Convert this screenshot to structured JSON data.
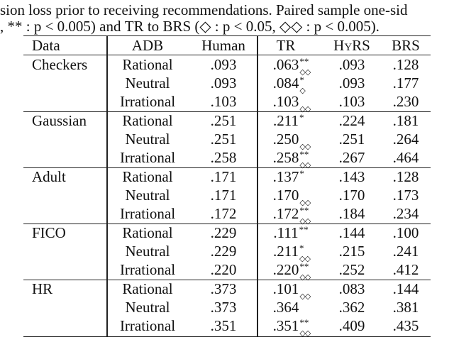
{
  "caption": {
    "line1": "sion loss prior to receiving recommendations. Paired sample one-sid",
    "line2_pre": ", ** : p < 0.005) and ",
    "line2_tr": "TR",
    "line2_mid": " to ",
    "line2_brs": "BRS",
    "line2_post": " (◇ : p < 0.05, ◇◇ : p < 0.005)."
  },
  "table": {
    "headers": [
      "Data",
      "ADB",
      "Human",
      "TR",
      "HyRS",
      "BRS"
    ],
    "groups": [
      {
        "data": "Checkers",
        "rows": [
          {
            "adb": "Rational",
            "human": ".093",
            "tr": ".063",
            "sup": "**",
            "sub": "◇◇",
            "hyrs": ".093",
            "brs": ".128"
          },
          {
            "adb": "Neutral",
            "human": ".093",
            "tr": ".084",
            "sup": "*",
            "sub": "◇",
            "hyrs": ".093",
            "brs": ".177"
          },
          {
            "adb": "Irrational",
            "human": ".103",
            "tr": ".103",
            "sup": "",
            "sub": "◇◇",
            "hyrs": ".103",
            "brs": ".230"
          }
        ]
      },
      {
        "data": "Gaussian",
        "rows": [
          {
            "adb": "Rational",
            "human": ".251",
            "tr": ".211",
            "sup": "*",
            "sub": "",
            "hyrs": ".224",
            "brs": ".181"
          },
          {
            "adb": "Neutral",
            "human": ".251",
            "tr": ".250",
            "sup": "",
            "sub": "◇◇",
            "hyrs": ".251",
            "brs": ".264"
          },
          {
            "adb": "Irrational",
            "human": ".258",
            "tr": ".258",
            "sup": "**",
            "sub": "◇◇",
            "hyrs": ".267",
            "brs": ".464"
          }
        ]
      },
      {
        "data": "Adult",
        "rows": [
          {
            "adb": "Rational",
            "human": ".171",
            "tr": ".137",
            "sup": "*",
            "sub": "",
            "hyrs": ".143",
            "brs": ".128"
          },
          {
            "adb": "Neutral",
            "human": ".171",
            "tr": ".170",
            "sup": "",
            "sub": "◇◇",
            "hyrs": ".170",
            "brs": ".173"
          },
          {
            "adb": "Irrational",
            "human": ".172",
            "tr": ".172",
            "sup": "**",
            "sub": "◇◇",
            "hyrs": ".184",
            "brs": ".234"
          }
        ]
      },
      {
        "data": "FICO",
        "rows": [
          {
            "adb": "Rational",
            "human": ".229",
            "tr": ".111",
            "sup": "**",
            "sub": "",
            "hyrs": ".144",
            "brs": ".100"
          },
          {
            "adb": "Neutral",
            "human": ".229",
            "tr": ".211",
            "sup": "*",
            "sub": "◇◇",
            "hyrs": ".215",
            "brs": ".241"
          },
          {
            "adb": "Irrational",
            "human": ".220",
            "tr": ".220",
            "sup": "**",
            "sub": "◇◇",
            "hyrs": ".252",
            "brs": ".412"
          }
        ]
      },
      {
        "data": "HR",
        "rows": [
          {
            "adb": "Rational",
            "human": ".373",
            "tr": ".101",
            "sup": "",
            "sub": "◇◇",
            "hyrs": ".083",
            "brs": ".144"
          },
          {
            "adb": "Neutral",
            "human": ".373",
            "tr": ".364",
            "sup": "",
            "sub": "",
            "hyrs": ".362",
            "brs": ".381"
          },
          {
            "adb": "Irrational",
            "human": ".351",
            "tr": ".351",
            "sup": "**",
            "sub": "◇◇",
            "hyrs": ".409",
            "brs": ".435"
          }
        ]
      }
    ]
  }
}
